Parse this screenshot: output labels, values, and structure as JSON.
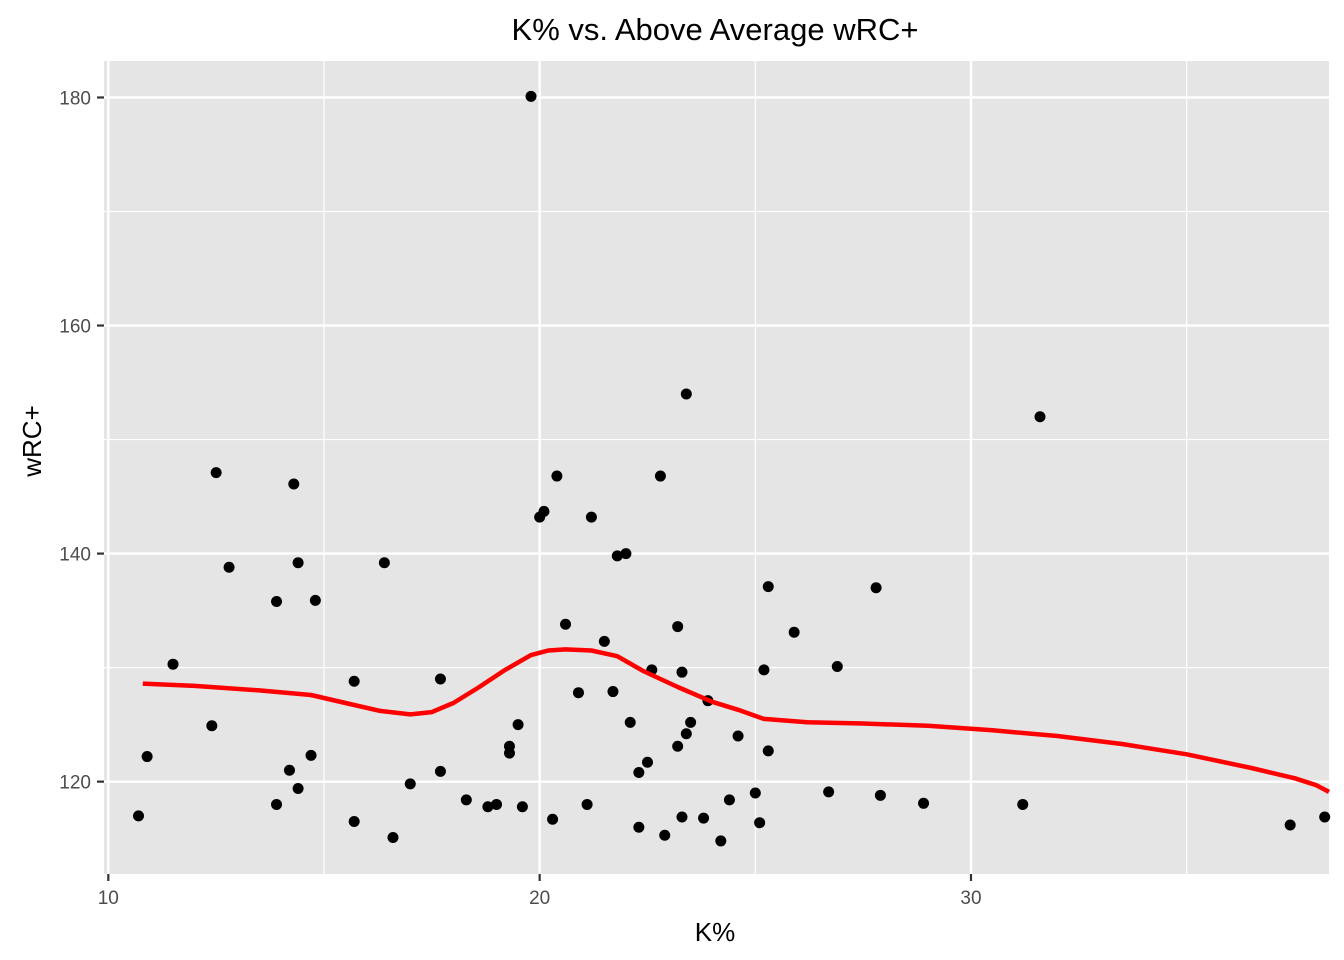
{
  "chart_data": {
    "type": "scatter",
    "title": "K% vs. Above Average wRC+",
    "xlabel": "K%",
    "ylabel": "wRC+",
    "xlim": [
      9.9,
      38.3
    ],
    "ylim": [
      111.9,
      183.2
    ],
    "x_ticks": [
      10,
      20,
      30
    ],
    "x_minor_ticks": [
      15,
      25,
      35
    ],
    "y_ticks": [
      120,
      140,
      160,
      180
    ],
    "y_minor_ticks": [
      130,
      150,
      170
    ],
    "grid": true,
    "panel_color": "#e5e5e5",
    "grid_color": "#ffffff",
    "point_color": "#000000",
    "smooth_color": "#ff0000",
    "points": [
      {
        "x": 10.7,
        "y": 117.0
      },
      {
        "x": 10.9,
        "y": 122.2
      },
      {
        "x": 11.5,
        "y": 130.3
      },
      {
        "x": 12.4,
        "y": 124.9
      },
      {
        "x": 12.5,
        "y": 147.1
      },
      {
        "x": 12.8,
        "y": 138.8
      },
      {
        "x": 13.9,
        "y": 118.0
      },
      {
        "x": 13.9,
        "y": 135.8
      },
      {
        "x": 14.2,
        "y": 121.0
      },
      {
        "x": 14.3,
        "y": 146.1
      },
      {
        "x": 14.4,
        "y": 119.4
      },
      {
        "x": 14.4,
        "y": 139.2
      },
      {
        "x": 14.7,
        "y": 122.3
      },
      {
        "x": 14.8,
        "y": 135.9
      },
      {
        "x": 15.7,
        "y": 128.8
      },
      {
        "x": 15.7,
        "y": 116.5
      },
      {
        "x": 16.4,
        "y": 139.2
      },
      {
        "x": 16.6,
        "y": 115.1
      },
      {
        "x": 17.0,
        "y": 119.8
      },
      {
        "x": 17.7,
        "y": 129.0
      },
      {
        "x": 17.7,
        "y": 120.9
      },
      {
        "x": 18.3,
        "y": 118.4
      },
      {
        "x": 18.8,
        "y": 117.8
      },
      {
        "x": 19.0,
        "y": 118.0
      },
      {
        "x": 19.3,
        "y": 122.5
      },
      {
        "x": 19.3,
        "y": 123.1
      },
      {
        "x": 19.5,
        "y": 125.0
      },
      {
        "x": 19.6,
        "y": 117.8
      },
      {
        "x": 19.8,
        "y": 180.1
      },
      {
        "x": 20.0,
        "y": 143.2
      },
      {
        "x": 20.1,
        "y": 143.7
      },
      {
        "x": 20.3,
        "y": 116.7
      },
      {
        "x": 20.4,
        "y": 146.8
      },
      {
        "x": 20.6,
        "y": 133.8
      },
      {
        "x": 20.9,
        "y": 127.8
      },
      {
        "x": 21.1,
        "y": 118.0
      },
      {
        "x": 21.2,
        "y": 143.2
      },
      {
        "x": 21.5,
        "y": 132.3
      },
      {
        "x": 21.7,
        "y": 127.9
      },
      {
        "x": 21.8,
        "y": 139.8
      },
      {
        "x": 22.0,
        "y": 140.0
      },
      {
        "x": 22.1,
        "y": 125.2
      },
      {
        "x": 22.3,
        "y": 116.0
      },
      {
        "x": 22.3,
        "y": 120.8
      },
      {
        "x": 22.5,
        "y": 121.7
      },
      {
        "x": 22.6,
        "y": 129.8
      },
      {
        "x": 22.8,
        "y": 146.8
      },
      {
        "x": 22.9,
        "y": 115.3
      },
      {
        "x": 23.2,
        "y": 123.1
      },
      {
        "x": 23.2,
        "y": 133.6
      },
      {
        "x": 23.3,
        "y": 129.6
      },
      {
        "x": 23.3,
        "y": 116.9
      },
      {
        "x": 23.4,
        "y": 124.2
      },
      {
        "x": 23.4,
        "y": 154.0
      },
      {
        "x": 23.5,
        "y": 125.2
      },
      {
        "x": 23.8,
        "y": 116.8
      },
      {
        "x": 23.9,
        "y": 127.1
      },
      {
        "x": 24.2,
        "y": 114.8
      },
      {
        "x": 24.4,
        "y": 118.4
      },
      {
        "x": 24.6,
        "y": 124.0
      },
      {
        "x": 25.0,
        "y": 119.0
      },
      {
        "x": 25.1,
        "y": 116.4
      },
      {
        "x": 25.2,
        "y": 129.8
      },
      {
        "x": 25.3,
        "y": 122.7
      },
      {
        "x": 25.3,
        "y": 137.1
      },
      {
        "x": 25.9,
        "y": 133.1
      },
      {
        "x": 26.7,
        "y": 119.1
      },
      {
        "x": 26.9,
        "y": 130.1
      },
      {
        "x": 27.8,
        "y": 137.0
      },
      {
        "x": 27.9,
        "y": 118.8
      },
      {
        "x": 28.9,
        "y": 118.1
      },
      {
        "x": 31.2,
        "y": 118.0
      },
      {
        "x": 31.6,
        "y": 152.0
      },
      {
        "x": 37.4,
        "y": 116.2
      },
      {
        "x": 38.2,
        "y": 116.9
      }
    ],
    "smooth_line": [
      {
        "x": 10.8,
        "y": 128.6
      },
      {
        "x": 12.0,
        "y": 128.4
      },
      {
        "x": 13.5,
        "y": 128.0
      },
      {
        "x": 14.7,
        "y": 127.6
      },
      {
        "x": 15.5,
        "y": 126.9
      },
      {
        "x": 16.3,
        "y": 126.2
      },
      {
        "x": 17.0,
        "y": 125.9
      },
      {
        "x": 17.5,
        "y": 126.1
      },
      {
        "x": 18.0,
        "y": 126.9
      },
      {
        "x": 18.6,
        "y": 128.3
      },
      {
        "x": 19.2,
        "y": 129.8
      },
      {
        "x": 19.8,
        "y": 131.1
      },
      {
        "x": 20.2,
        "y": 131.5
      },
      {
        "x": 20.6,
        "y": 131.6
      },
      {
        "x": 21.2,
        "y": 131.5
      },
      {
        "x": 21.8,
        "y": 131.0
      },
      {
        "x": 22.4,
        "y": 129.7
      },
      {
        "x": 23.2,
        "y": 128.3
      },
      {
        "x": 24.0,
        "y": 127.0
      },
      {
        "x": 24.6,
        "y": 126.3
      },
      {
        "x": 25.2,
        "y": 125.5
      },
      {
        "x": 26.2,
        "y": 125.2
      },
      {
        "x": 27.5,
        "y": 125.1
      },
      {
        "x": 29.0,
        "y": 124.9
      },
      {
        "x": 30.5,
        "y": 124.5
      },
      {
        "x": 32.0,
        "y": 124.0
      },
      {
        "x": 33.5,
        "y": 123.3
      },
      {
        "x": 35.0,
        "y": 122.4
      },
      {
        "x": 36.5,
        "y": 121.2
      },
      {
        "x": 37.5,
        "y": 120.3
      },
      {
        "x": 38.0,
        "y": 119.7
      },
      {
        "x": 38.3,
        "y": 119.1
      }
    ]
  }
}
